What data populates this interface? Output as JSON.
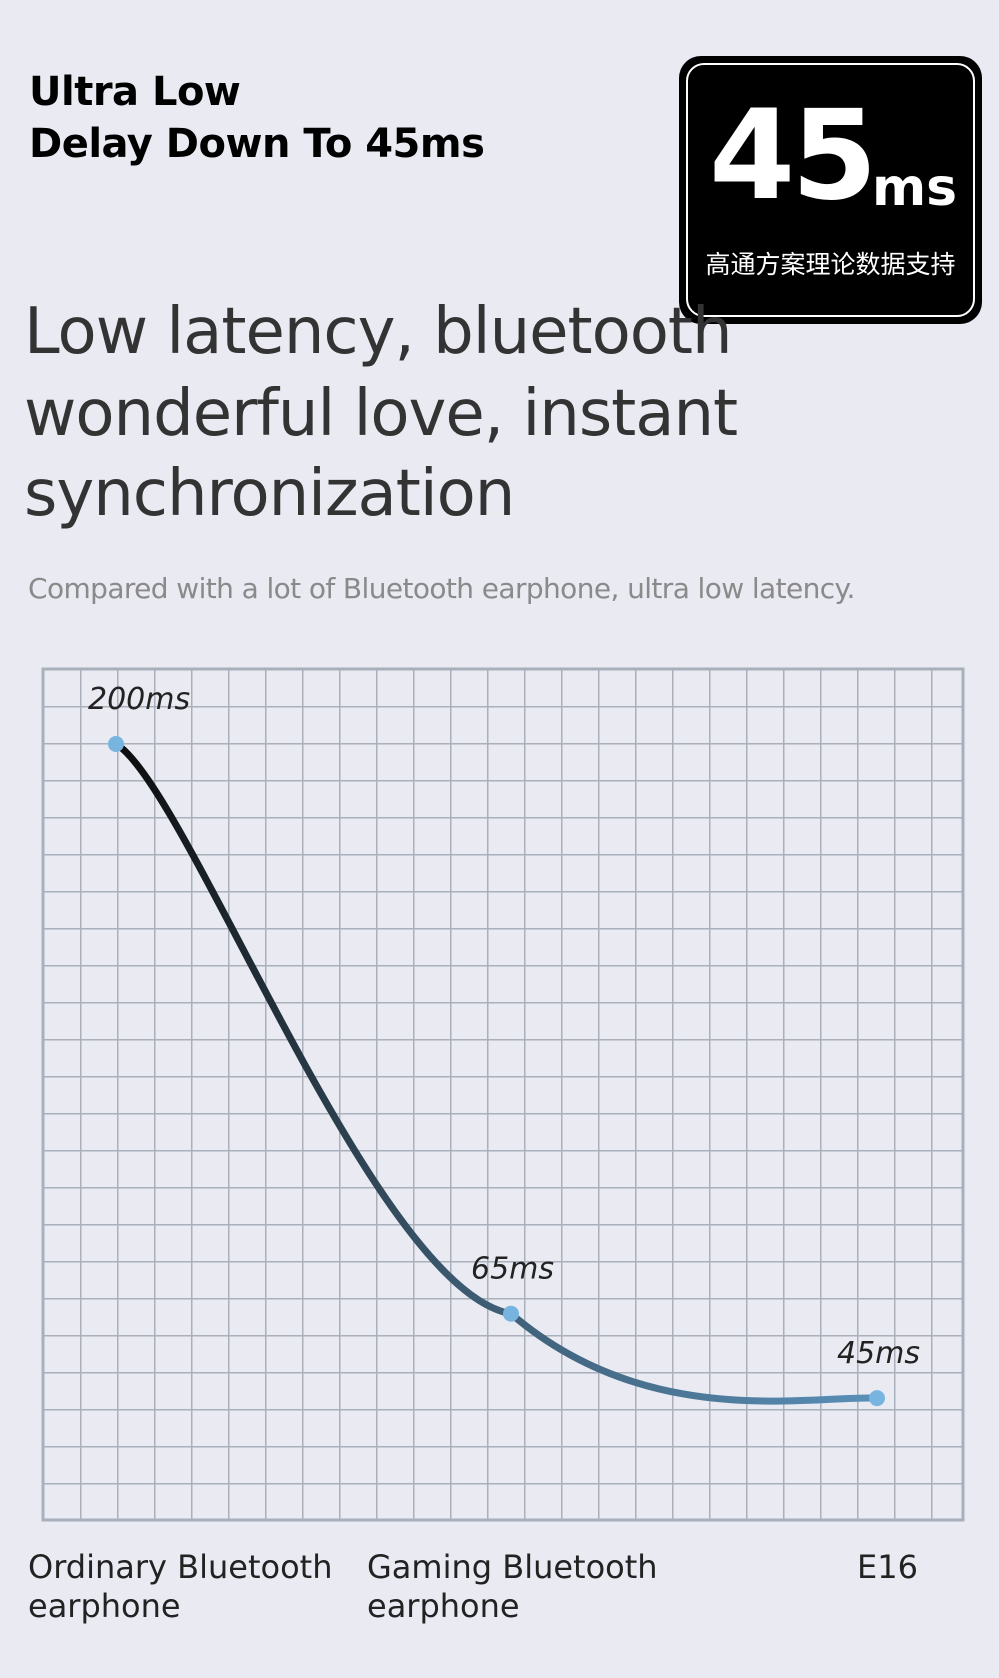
{
  "header": {
    "title_lines": [
      "Ultra Low",
      "Delay Down To 45ms"
    ]
  },
  "badge": {
    "number": "45",
    "unit": "ms",
    "caption": "高通方案理论数据支持"
  },
  "headline_lines": [
    "Low latency, bluetooth",
    "wonderful love, instant",
    "synchronization"
  ],
  "subtitle": "Compared with a lot of Bluetooth earphone, ultra low latency.",
  "chart_data": {
    "type": "line",
    "categories": [
      "Ordinary Bluetooth earphone",
      "Gaming Bluetooth earphone",
      "E16"
    ],
    "values": [
      200,
      65,
      45
    ],
    "value_labels": [
      "200ms",
      "65ms",
      "45ms"
    ],
    "color": "#78b4e0"
  }
}
